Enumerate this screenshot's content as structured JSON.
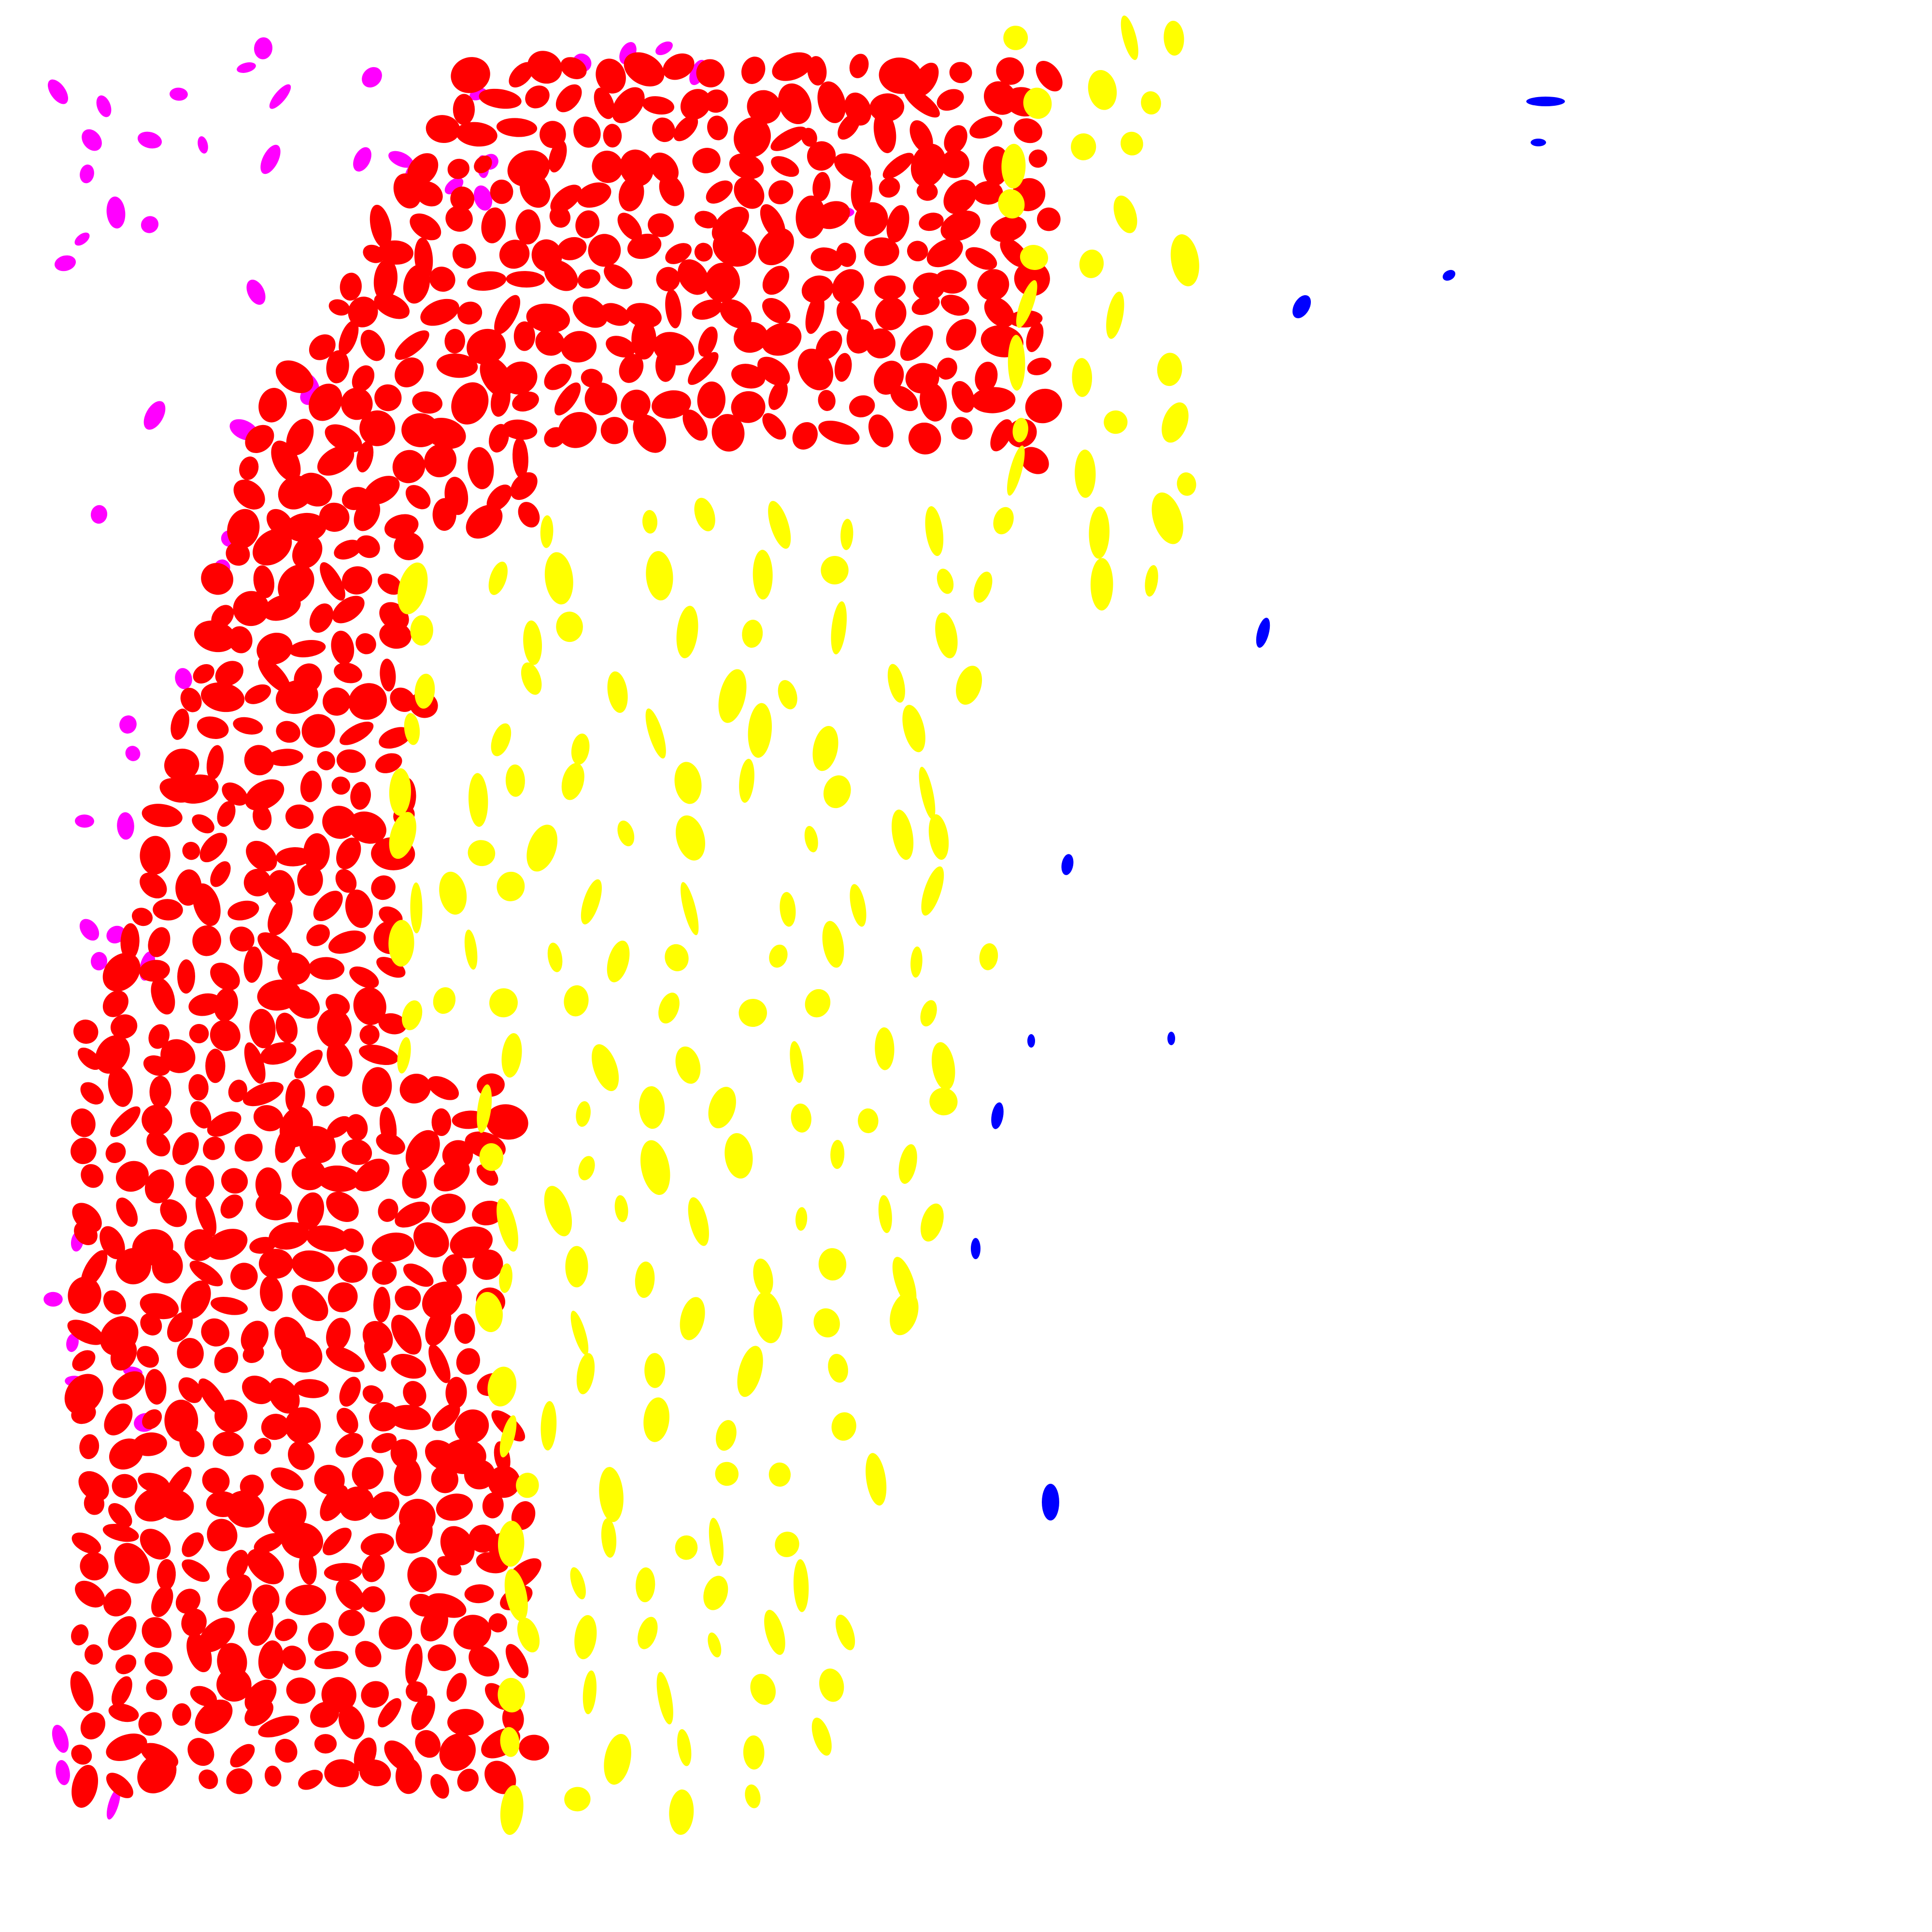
{
  "image": {
    "kind": "segmentation-mask",
    "background": "#ffffff"
  },
  "classes": [
    {
      "key": "magenta",
      "color": "#ff00ff"
    },
    {
      "key": "red",
      "color": "#ff0000"
    },
    {
      "key": "yellow",
      "color": "#ffff00"
    },
    {
      "key": "blue",
      "color": "#0000ff"
    }
  ]
}
